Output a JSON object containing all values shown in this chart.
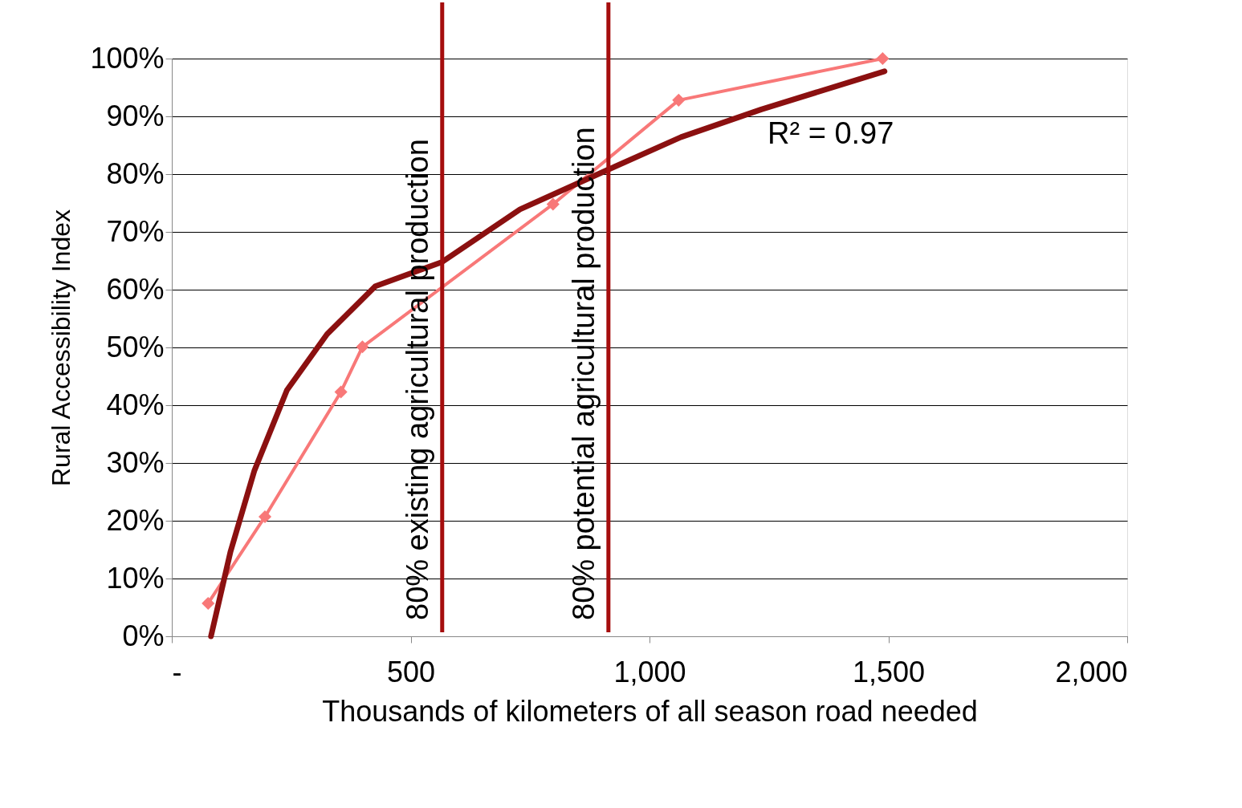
{
  "chart_data": {
    "type": "line",
    "xlabel": "Thousands of kilometers of all season road needed",
    "ylabel": "Rural Accessibility Index",
    "series": [
      {
        "marker": "diamond",
        "color": "#f87878",
        "x": [
          76,
          195,
          354,
          399,
          798,
          1061,
          1488
        ],
        "values": [
          5.7,
          20.7,
          42.3,
          50.1,
          74.8,
          92.8,
          100
        ]
      },
      {
        "marker": "none",
        "color": "#8b1010",
        "x": [
          82,
          123,
          173,
          241,
          325,
          426,
          566,
          729,
          914,
          1066,
          1234,
          1492
        ],
        "values": [
          0,
          14.7,
          28.7,
          42.6,
          52.3,
          60.6,
          64.8,
          73.9,
          80.8,
          86.4,
          91.2,
          97.8
        ]
      }
    ],
    "xlim": [
      0,
      2000
    ],
    "xticks": [
      {
        "value": 0,
        "label": "-"
      },
      500,
      {
        "value": 1000,
        "label": "1,000"
      },
      {
        "value": 1500,
        "label": "1,500"
      },
      {
        "value": 2000,
        "label": "2,000"
      }
    ],
    "ylim": [
      0,
      100
    ],
    "yticks": [
      {
        "value": 0,
        "label": "0%"
      },
      {
        "value": 10,
        "label": "10%"
      },
      {
        "value": 20,
        "label": "20%"
      },
      {
        "value": 30,
        "label": "30%"
      },
      {
        "value": 40,
        "label": "40%"
      },
      {
        "value": 50,
        "label": "50%"
      },
      {
        "value": 60,
        "label": "60%"
      },
      {
        "value": 70,
        "label": "70%"
      },
      {
        "value": 80,
        "label": "80%"
      },
      {
        "value": 90,
        "label": "90%"
      },
      {
        "value": 100,
        "label": "100%"
      }
    ],
    "ref_lines": [
      {
        "axis": "x",
        "value": 566,
        "label": "80% existing agricultural production",
        "color": "#a50d0d"
      },
      {
        "axis": "x",
        "value": 914,
        "label": "80% potential agricultural production",
        "color": "#a50d0d"
      }
    ],
    "annotations": [
      "R² = 0.97"
    ],
    "grid": "y"
  }
}
